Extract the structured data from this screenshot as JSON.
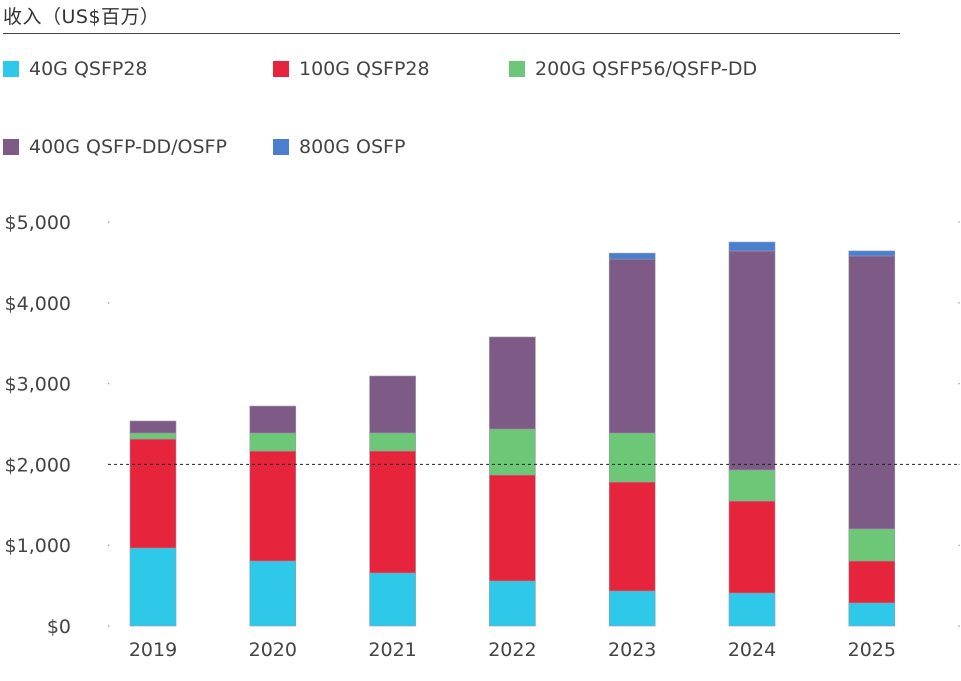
{
  "chart_data": {
    "type": "bar",
    "stacked": true,
    "title": "收入（US$百万）",
    "xlabel": "",
    "ylabel": "",
    "ylim": [
      0,
      5000
    ],
    "yticks": [
      0,
      1000,
      2000,
      3000,
      4000,
      5000
    ],
    "ytick_labels": [
      "$0",
      "$1,000",
      "$2,000",
      "$3,000",
      "$4,000",
      "$5,000"
    ],
    "reference_line": {
      "value": 2000,
      "style": "dashed"
    },
    "grid": false,
    "legend_position": "top",
    "categories": [
      "2019",
      "2020",
      "2021",
      "2022",
      "2023",
      "2024",
      "2025"
    ],
    "series": [
      {
        "name": "40G QSFP28",
        "color": "#2ec8e8",
        "values": [
          965,
          804,
          656,
          557,
          433,
          408,
          285
        ]
      },
      {
        "name": "100G QSFP28",
        "color": "#e6243c",
        "values": [
          1349,
          1361,
          1510,
          1312,
          1349,
          1139,
          520
        ]
      },
      {
        "name": "200G QSFP56/QSFP-DD",
        "color": "#6cc777",
        "values": [
          74,
          223,
          223,
          569,
          606,
          384,
          396
        ]
      },
      {
        "name": "400G QSFP-DD/OSFP",
        "color": "#7e5b87",
        "values": [
          149,
          334,
          705,
          1139,
          2153,
          2710,
          3379
        ]
      },
      {
        "name": "800G OSFP",
        "color": "#4a7fd0",
        "values": [
          0,
          0,
          0,
          0,
          74,
          111,
          62
        ]
      }
    ]
  }
}
